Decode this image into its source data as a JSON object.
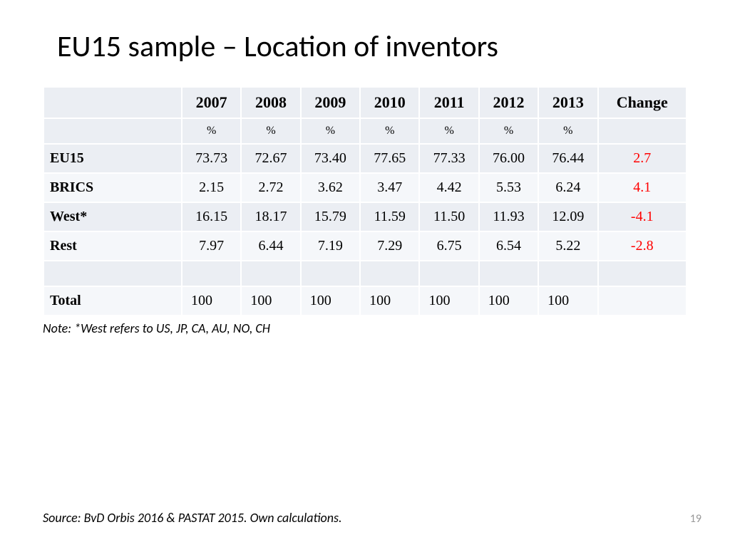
{
  "title": "EU15 sample – Location of inventors",
  "table": {
    "years": [
      "2007",
      "2008",
      "2009",
      "2010",
      "2011",
      "2012",
      "2013"
    ],
    "change_header": "Change",
    "subheader_unit": "%",
    "rows": [
      {
        "label": "EU15",
        "values": [
          "73.73",
          "72.67",
          "73.40",
          "77.65",
          "77.33",
          "76.00",
          "76.44"
        ],
        "change": "2.7"
      },
      {
        "label": "BRICS",
        "values": [
          "2.15",
          "2.72",
          "3.62",
          "3.47",
          "4.42",
          "5.53",
          "6.24"
        ],
        "change": "4.1"
      },
      {
        "label": "West*",
        "values": [
          "16.15",
          "18.17",
          "15.79",
          "11.59",
          "11.50",
          "11.93",
          "12.09"
        ],
        "change": "-4.1"
      },
      {
        "label": "Rest",
        "values": [
          "7.97",
          "6.44",
          "7.19",
          "7.29",
          "6.75",
          "6.54",
          "5.22"
        ],
        "change": "-2.8"
      }
    ],
    "total": {
      "label": "Total",
      "values": [
        "100",
        "100",
        "100",
        "100",
        "100",
        "100",
        "100"
      ],
      "change": ""
    },
    "colors": {
      "row_band_1": "#ebeef3",
      "row_band_2": "#f5f7fa",
      "border": "#ffffff",
      "text": "#000000",
      "change_text": "#ff0000"
    },
    "font": {
      "family_serif": "Georgia",
      "cell_fontsize_pt": 15,
      "header_fontsize_pt": 17
    }
  },
  "note": "Note: *West refers to US, JP, CA, AU, NO, CH",
  "source": "Source: BvD Orbis 2016 & PASTAT 2015. Own calculations.",
  "page_number": "19"
}
